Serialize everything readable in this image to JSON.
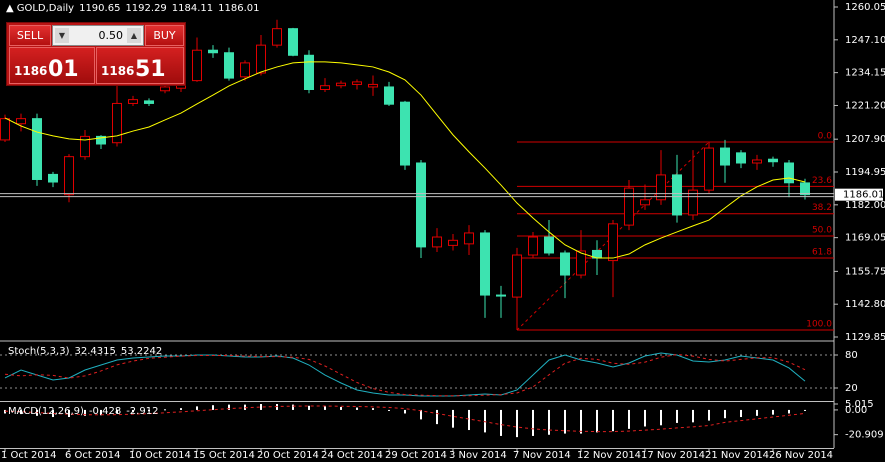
{
  "chart_data": [
    {
      "type": "candlestick",
      "title": "GOLD,Daily",
      "categories": [
        "1 Oct 2014",
        null,
        null,
        null,
        "6 Oct 2014",
        null,
        null,
        null,
        "10 Oct 2014",
        null,
        null,
        null,
        "15 Oct 2014",
        null,
        null,
        null,
        "20 Oct 2014",
        null,
        null,
        null,
        "24 Oct 2014",
        null,
        null,
        null,
        "29 Oct 2014",
        null,
        null,
        null,
        "3 Nov 2014",
        null,
        null,
        null,
        "7 Nov 2014",
        null,
        null,
        null,
        "12 Nov 2014",
        null,
        null,
        null,
        "17 Nov 2014",
        null,
        null,
        null,
        "21 Nov 2014",
        null,
        null,
        null,
        "26 Nov 2014",
        null,
        null
      ],
      "open": [
        1207.6,
        1214,
        1216,
        1194,
        1186,
        1201,
        1209,
        1206.5,
        1222,
        1223,
        1227,
        1228,
        1231,
        1243,
        1242,
        1232.5,
        1234,
        1245,
        1251.5,
        1241,
        1227.5,
        1229,
        1229.5,
        1228.5,
        1228.5,
        1222.5,
        1198.5,
        1165.4,
        1166,
        1166.6,
        1170.9,
        1146.4,
        1145.6,
        1162.2,
        1169.3,
        1163,
        1154.3,
        1164,
        1160,
        1174,
        1182,
        1184,
        1193.8,
        1178,
        1187.8,
        1204.4,
        1202.5,
        1198.5,
        1200,
        1198.5,
        1190.65
      ],
      "high": [
        1217.6,
        1218,
        1218,
        1195,
        1202,
        1211.5,
        1209.5,
        1229,
        1225,
        1224,
        1230,
        1239,
        1248,
        1245,
        1244,
        1239,
        1249,
        1255,
        1251.8,
        1243,
        1232,
        1231,
        1231.5,
        1233,
        1230.5,
        1223,
        1199.7,
        1172.8,
        1170.5,
        1174,
        1172,
        1150,
        1165,
        1171.3,
        1176,
        1164,
        1172,
        1168,
        1176,
        1191.8,
        1190,
        1203.6,
        1201.7,
        1203.6,
        1206.8,
        1207.6,
        1203.6,
        1201.7,
        1201,
        1199.7,
        1192.29
      ],
      "low": [
        1206.8,
        1211,
        1189.5,
        1189,
        1183,
        1199.8,
        1204,
        1205,
        1221,
        1221,
        1226,
        1226.5,
        1230.5,
        1240,
        1231,
        1231,
        1233,
        1244,
        1240.6,
        1226,
        1226.5,
        1228,
        1227.5,
        1225,
        1221,
        1195.8,
        1161,
        1163.4,
        1164,
        1162.2,
        1137.4,
        1137.4,
        1132.6,
        1161,
        1162,
        1145.2,
        1153,
        1154.3,
        1145.6,
        1172,
        1180,
        1182,
        1175,
        1176,
        1186.6,
        1190.7,
        1196.5,
        1195.8,
        1197,
        1185,
        1184.11
      ],
      "close": [
        1216,
        1216,
        1192,
        1191,
        1201,
        1209,
        1206,
        1222,
        1223.5,
        1222,
        1228.5,
        1231,
        1243,
        1242,
        1232,
        1238,
        1245,
        1251.5,
        1241,
        1227.5,
        1229,
        1230,
        1230.5,
        1229.5,
        1221.7,
        1197.7,
        1165.4,
        1169.3,
        1168,
        1170.9,
        1146.4,
        1146,
        1162.2,
        1169.3,
        1163,
        1154.3,
        1163.8,
        1161,
        1174.5,
        1188.6,
        1184,
        1193.8,
        1178,
        1187.8,
        1204.4,
        1197.7,
        1198.5,
        1199.7,
        1199,
        1190.7,
        1186.01
      ],
      "up_color": "#e00000",
      "down_color": "#3de3b0",
      "overlay": {
        "color": "#ffff00",
        "values": [
          1216.3,
          1213.1,
          1210.7,
          1209.2,
          1208.0,
          1207.6,
          1208.4,
          1209.2,
          1211.1,
          1212.7,
          1215.5,
          1218.2,
          1221.8,
          1225.3,
          1228.9,
          1231.7,
          1234.4,
          1236.4,
          1238.0,
          1238.4,
          1238.4,
          1238.0,
          1237.2,
          1236.4,
          1234.4,
          1231.3,
          1225.3,
          1217.4,
          1209.6,
          1202.9,
          1196.5,
          1189.8,
          1182.7,
          1176.8,
          1171.3,
          1166.2,
          1163.0,
          1161.0,
          1161.0,
          1162.6,
          1166.2,
          1168.9,
          1171.3,
          1173.7,
          1176.0,
          1180.8,
          1185.5,
          1189.1,
          1191.8,
          1192.6,
          1191.0
        ]
      },
      "fibonacci": {
        "color": "#d00000",
        "levels": [
          {
            "label": "0.0",
            "price": 1206.8
          },
          {
            "label": "23.6",
            "price": 1189.3
          },
          {
            "label": "38.2",
            "price": 1178.5
          },
          {
            "label": "50.0",
            "price": 1169.7
          },
          {
            "label": "61.8",
            "price": 1161.0
          },
          {
            "label": "100.0",
            "price": 1132.6
          }
        ]
      },
      "ylim": [
        1128.67,
        1262.02
      ],
      "yticks": [
        1260.05,
        {
          "value": 1247.1,
          "label": "1247.10"
        },
        1234.15,
        {
          "value": 1221.2,
          "label": "1221.20"
        },
        {
          "value": 1207.9,
          "label": "1207.90"
        },
        1194.95,
        {
          "value": 1182,
          "label": "1182.00"
        },
        1169.05,
        1155.75,
        {
          "value": 1142.8,
          "label": "1142.80"
        },
        1129.85
      ]
    },
    {
      "type": "line",
      "title": "Stoch(5,3,3)",
      "series": [
        {
          "color": "#20b0c0",
          "dash": false,
          "values": [
            38.2,
            52.7,
            43.6,
            34.5,
            38.2,
            52.7,
            61.8,
            70.9,
            74.5,
            76.4,
            78.2,
            78.2,
            80.0,
            80.0,
            78.2,
            76.4,
            76.4,
            78.2,
            74.5,
            61.8,
            43.6,
            29.1,
            16.4,
            10.9,
            7.3,
            7.3,
            5.5,
            5.5,
            5.5,
            7.3,
            9.1,
            7.3,
            16.4,
            43.6,
            70.9,
            80.0,
            70.9,
            65.5,
            58.2,
            65.5,
            78.2,
            83.6,
            80.0,
            69.1,
            67.3,
            70.9,
            78.2,
            74.5,
            70.9,
            56.4,
            32.4315
          ]
        },
        {
          "color": "#e02020",
          "dash": true,
          "values": [
            45,
            42,
            44,
            43,
            38,
            42,
            51,
            62,
            69,
            74,
            76,
            78,
            79,
            79,
            79,
            78,
            77,
            77,
            76,
            72,
            60,
            45,
            30,
            19,
            12,
            8,
            7,
            6,
            6,
            6,
            7,
            8,
            11,
            22,
            44,
            65,
            74,
            72,
            65,
            63,
            67,
            76,
            81,
            78,
            72,
            69,
            72,
            75,
            75,
            67,
            53.2242
          ]
        }
      ],
      "ylim": [
        0,
        100
      ],
      "yticks": [
        20,
        80
      ]
    },
    {
      "type": "macd",
      "title": "MACD(12,26,9)",
      "values": [
        -3,
        -3.5,
        -5,
        -6,
        -6,
        -5,
        -4.5,
        -3,
        -2,
        -1,
        0.5,
        1.5,
        3,
        4,
        4.5,
        4.5,
        5,
        5,
        4.5,
        3.5,
        3,
        2.5,
        2,
        1.5,
        0,
        -3,
        -8,
        -12,
        -15,
        -17,
        -19,
        -22,
        -23,
        -22,
        -21,
        -20,
        -20,
        -19,
        -18,
        -16,
        -14,
        -13,
        -11,
        -10.5,
        -9,
        -7,
        -6,
        -5,
        -4,
        -3,
        -0.428
      ],
      "signal": [
        -1,
        -1.5,
        -2.2,
        -3,
        -3.6,
        -4,
        -4.1,
        -4,
        -3.6,
        -3.1,
        -2.4,
        -1.6,
        -0.7,
        0.2,
        1.1,
        1.8,
        2.4,
        2.9,
        3.2,
        3.3,
        3.3,
        3.1,
        2.9,
        2.6,
        2.1,
        1.1,
        -0.7,
        -3,
        -5.4,
        -7.7,
        -10,
        -12.4,
        -14.5,
        -16,
        -17,
        -17.6,
        -18.1,
        -18.3,
        -18.3,
        -17.9,
        -17.1,
        -16.3,
        -15.2,
        -14.3,
        -13.2,
        -10.5,
        -9,
        -7.5,
        -6,
        -4.5,
        -2.912
      ],
      "color": "#ffffff",
      "signal_color": "#e02020",
      "ylim": [
        -32.2,
        5.015
      ],
      "yticks": [
        5.015,
        {
          "value": 0,
          "label": "0.00"
        },
        -20.909
      ]
    }
  ],
  "trade_panel": {
    "sell": "SELL",
    "buy": "BUY",
    "lot": "0.50",
    "bid_big": "1186",
    "bid_pips": "01",
    "ask_big": "1186",
    "ask_pips": "51"
  }
}
